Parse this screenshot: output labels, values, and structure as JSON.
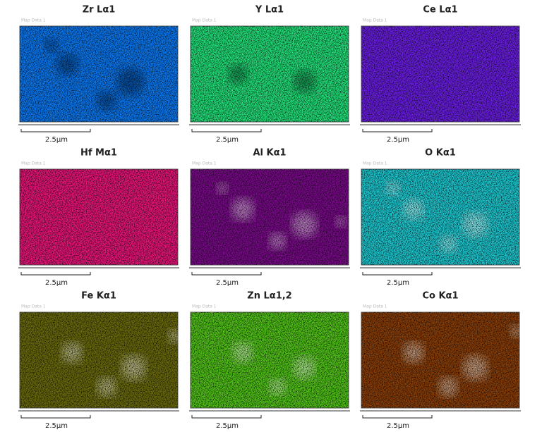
{
  "maps": [
    {
      "title": "Zr Lα1",
      "watermark": "Map Data 1",
      "scale": "2.5µm",
      "color": "#0a78f0"
    },
    {
      "title": "Y Lα1",
      "watermark": "Map Data 1",
      "scale": "2.5µm",
      "color": "#22e07a"
    },
    {
      "title": "Ce Lα1",
      "watermark": "Map Data 1",
      "scale": "2.5µm",
      "color": "#6a1ee0"
    },
    {
      "title": "Hf Mα1",
      "watermark": "Map Data 1",
      "scale": "2.5µm",
      "color": "#e8157a"
    },
    {
      "title": "Al Kα1",
      "watermark": "Map Data 1",
      "scale": "2.5µm",
      "color": "#7a0a8a"
    },
    {
      "title": "O Kα1",
      "watermark": "Map Data 1",
      "scale": "2.5µm",
      "color": "#1cc8d0"
    },
    {
      "title": "Fe Kα1",
      "watermark": "Map Data 1",
      "scale": "2.5µm",
      "color": "#6a6a0c"
    },
    {
      "title": "Zn Lα1,2",
      "watermark": "Map Data 1",
      "scale": "2.5µm",
      "color": "#52c418"
    },
    {
      "title": "Co Kα1",
      "watermark": "Map Data 1",
      "scale": "2.5µm",
      "color": "#8a3e08"
    }
  ]
}
